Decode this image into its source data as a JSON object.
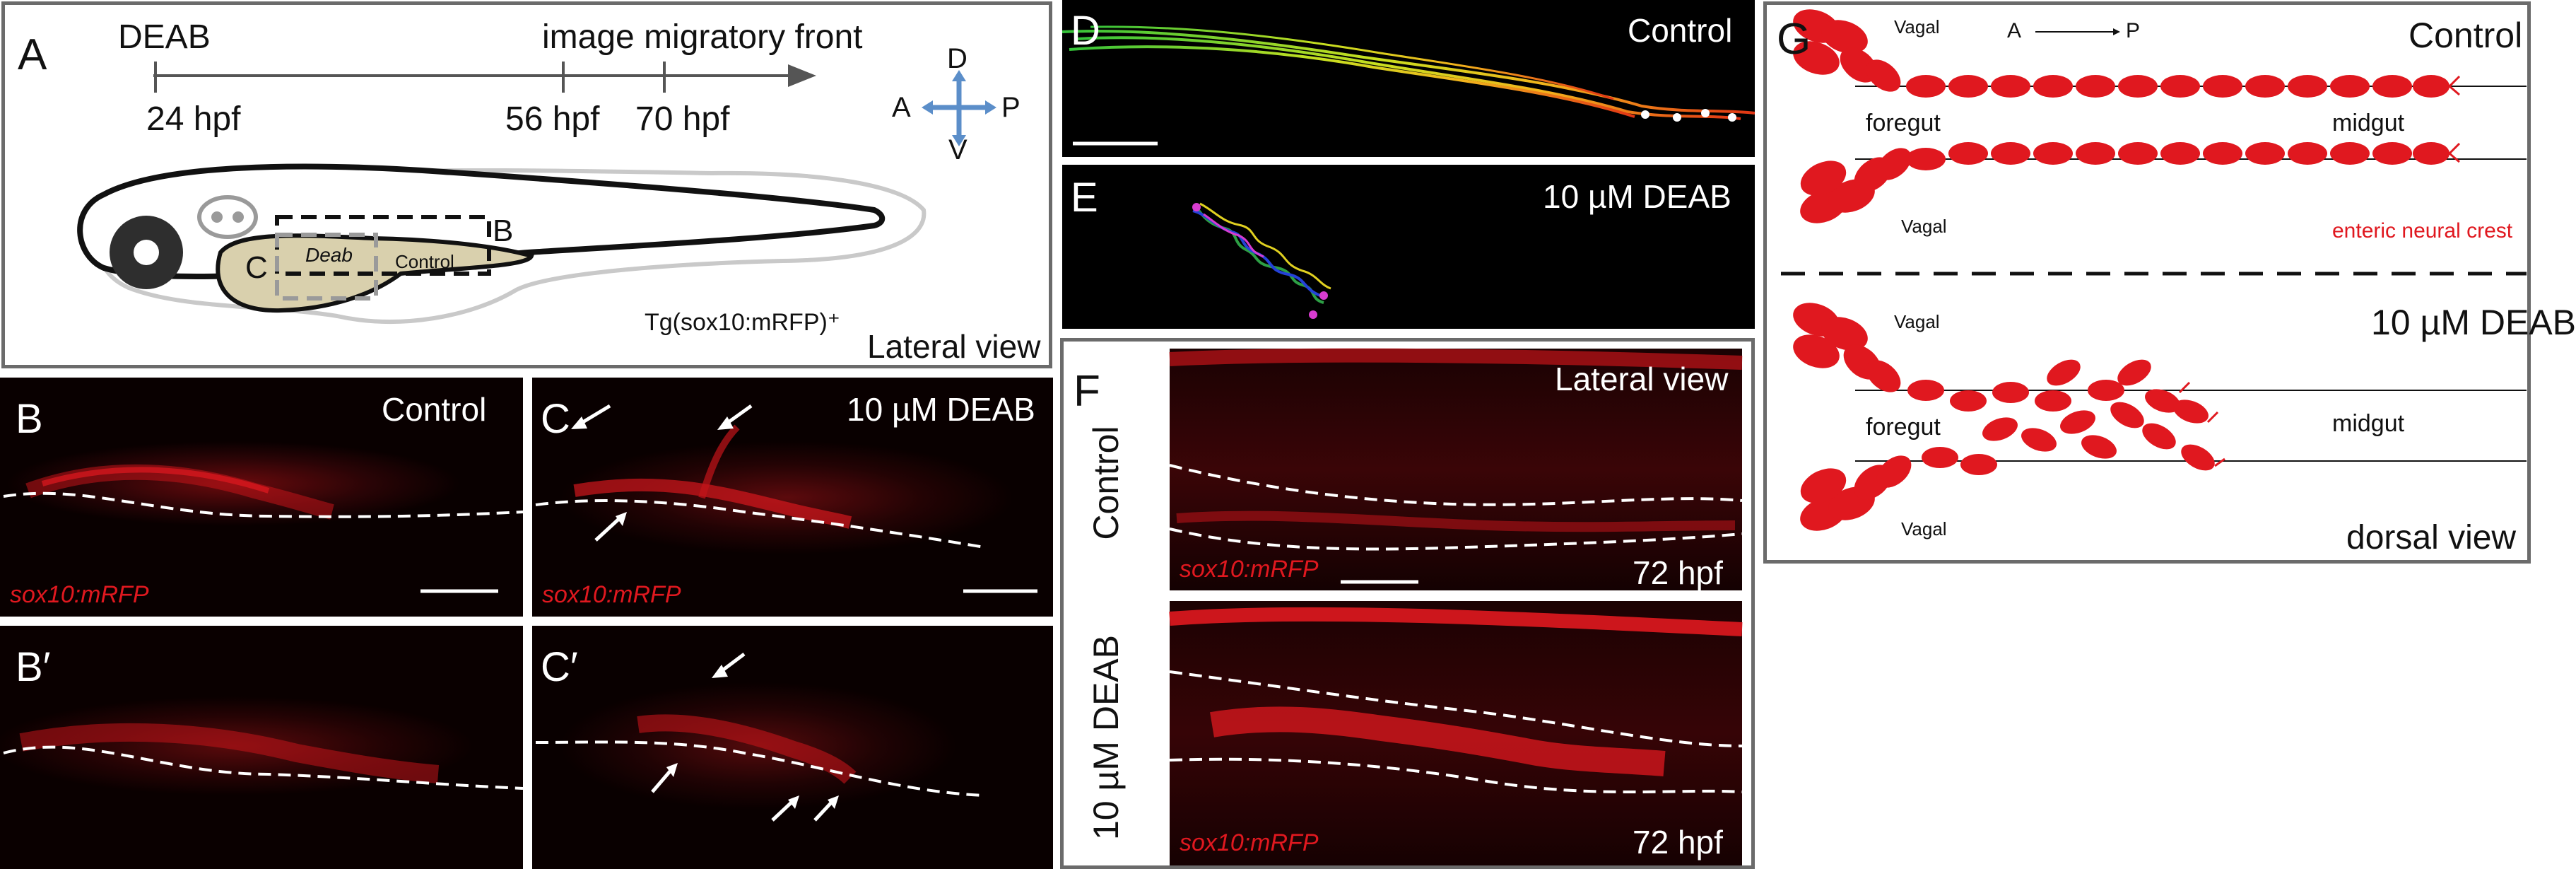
{
  "panel_a": {
    "letter": "A",
    "timeline": {
      "start_event": "DEAB",
      "end_event": "image migratory front",
      "ticks": [
        "24 hpf",
        "56 hpf",
        "70 hpf"
      ]
    },
    "axes": {
      "dorsal": "D",
      "ventral": "V",
      "anterior": "A",
      "posterior": "P"
    },
    "box_labels": {
      "b": "B",
      "c": "C",
      "deab": "Deab",
      "control": "Control"
    },
    "transgene": "Tg(sox10:mRFP)⁺",
    "view": "Lateral view"
  },
  "panel_b": {
    "letter": "B",
    "condition": "Control",
    "marker": "sox10:mRFP"
  },
  "panel_b_prime": {
    "letter": "B′"
  },
  "panel_c": {
    "letter": "C",
    "condition": "10 µM DEAB",
    "marker": "sox10:mRFP"
  },
  "panel_c_prime": {
    "letter": "C′"
  },
  "panel_d": {
    "letter": "D",
    "condition": "Control"
  },
  "panel_e": {
    "letter": "E",
    "condition": "10 µM DEAB"
  },
  "panel_f": {
    "letter": "F",
    "view": "Lateral view",
    "row_control": "Control",
    "row_deab": "10 µM DEAB",
    "marker": "sox10:mRFP",
    "stage_top": "72 hpf",
    "stage_bottom": "72 hpf"
  },
  "panel_g": {
    "letter": "G",
    "axis": {
      "anterior": "A",
      "posterior": "P"
    },
    "control": {
      "title": "Control",
      "vagal_top": "Vagal",
      "vagal_bottom": "Vagal",
      "foregut": "foregut",
      "midgut": "midgut",
      "legend": "enteric neural crest"
    },
    "deab": {
      "title": "10 µM DEAB",
      "vagal_top": "Vagal",
      "vagal_bottom": "Vagal",
      "foregut": "foregut",
      "midgut": "midgut"
    },
    "view": "dorsal view"
  },
  "colors": {
    "crest_red": "#e0181f",
    "arrow_blue": "#5b8ec9",
    "yolk": "#d9d0ad"
  }
}
